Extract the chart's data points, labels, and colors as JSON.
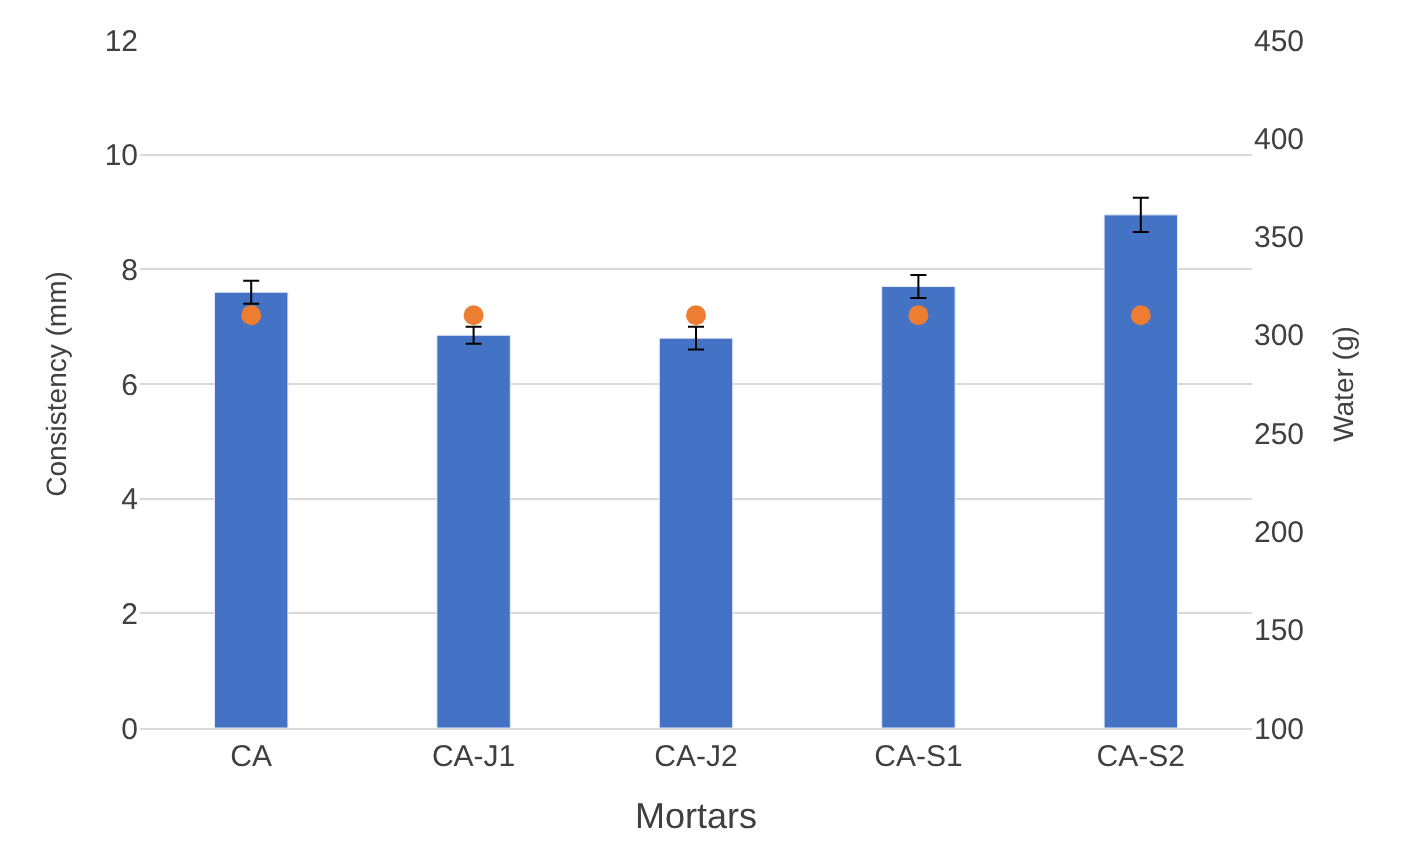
{
  "chart_data": {
    "type": "bar",
    "xlabel": "Mortars",
    "ylabel": "Consistency (mm)",
    "y2label": "Water (g)",
    "categories": [
      "CA",
      "CA-J1",
      "CA-J2",
      "CA-S1",
      "CA-S2"
    ],
    "series": [
      {
        "color": "#4472c4",
        "values": [
          7.6,
          6.85,
          6.8,
          7.7,
          8.95
        ],
        "errors": [
          0.2,
          0.15,
          0.2,
          0.2,
          0.3
        ]
      },
      {
        "type": "scatter",
        "axis": "y2",
        "color": "#ed7d31",
        "values": [
          310,
          310,
          310,
          310,
          310
        ]
      }
    ],
    "ylim": [
      0,
      12
    ],
    "yticks": [
      0,
      2,
      4,
      6,
      8,
      10,
      12
    ],
    "y2lim": [
      100,
      450
    ],
    "y2ticks": [
      100,
      150,
      200,
      250,
      300,
      350,
      400,
      450
    ],
    "grid": "y",
    "marker": "circle"
  }
}
